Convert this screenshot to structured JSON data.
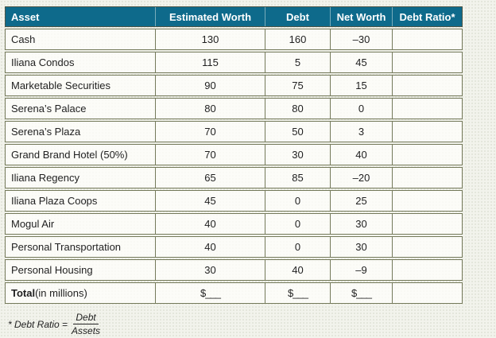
{
  "table": {
    "columns": [
      {
        "label": "Asset"
      },
      {
        "label": "Estimated Worth"
      },
      {
        "label": "Debt"
      },
      {
        "label": "Net Worth"
      },
      {
        "label": "Debt Ratio*"
      }
    ],
    "rows": [
      {
        "asset": "Cash",
        "estimated_worth": "130",
        "debt": "160",
        "net_worth": "–30",
        "debt_ratio": ""
      },
      {
        "asset": "Iliana Condos",
        "estimated_worth": "115",
        "debt": "5",
        "net_worth": "45",
        "debt_ratio": ""
      },
      {
        "asset": "Marketable Securities",
        "estimated_worth": "90",
        "debt": "75",
        "net_worth": "15",
        "debt_ratio": ""
      },
      {
        "asset": "Serena’s Palace",
        "estimated_worth": "80",
        "debt": "80",
        "net_worth": "0",
        "debt_ratio": ""
      },
      {
        "asset": "Serena’s Plaza",
        "estimated_worth": "70",
        "debt": "50",
        "net_worth": "3",
        "debt_ratio": ""
      },
      {
        "asset": "Grand Brand Hotel (50%)",
        "estimated_worth": "70",
        "debt": "30",
        "net_worth": "40",
        "debt_ratio": ""
      },
      {
        "asset": "Iliana Regency",
        "estimated_worth": "65",
        "debt": "85",
        "net_worth": "–20",
        "debt_ratio": ""
      },
      {
        "asset": "Iliana Plaza Coops",
        "estimated_worth": "45",
        "debt": "0",
        "net_worth": "25",
        "debt_ratio": ""
      },
      {
        "asset": "Mogul Air",
        "estimated_worth": "40",
        "debt": "0",
        "net_worth": "30",
        "debt_ratio": ""
      },
      {
        "asset": "Personal Transportation",
        "estimated_worth": "40",
        "debt": "0",
        "net_worth": "30",
        "debt_ratio": ""
      },
      {
        "asset": "Personal Housing",
        "estimated_worth": "30",
        "debt": "40",
        "net_worth": "–9",
        "debt_ratio": ""
      }
    ],
    "total": {
      "label_bold": "Total",
      "label_rest": " (in millions)",
      "estimated_worth": "$___",
      "debt": "$___",
      "net_worth": "$___",
      "debt_ratio": ""
    }
  },
  "footnote": {
    "prefix": "* Debt Ratio =",
    "numerator": "Debt",
    "denominator": "Assets"
  },
  "colors": {
    "header_bg": "#0e6a8b",
    "header_text": "#ffffff",
    "border": "#74795a",
    "page_bg": "#f2f3ec",
    "row_bg": "#fcfcf8",
    "text": "#1f1f1f"
  },
  "chart_data": {
    "type": "table",
    "title": "Asset worksheet (in millions)",
    "columns": [
      "Asset",
      "Estimated Worth",
      "Debt",
      "Net Worth",
      "Debt Ratio*"
    ],
    "rows": [
      [
        "Cash",
        130,
        160,
        -30,
        null
      ],
      [
        "Iliana Condos",
        115,
        5,
        45,
        null
      ],
      [
        "Marketable Securities",
        90,
        75,
        15,
        null
      ],
      [
        "Serena’s Palace",
        80,
        80,
        0,
        null
      ],
      [
        "Serena’s Plaza",
        70,
        50,
        3,
        null
      ],
      [
        "Grand Brand Hotel (50%)",
        70,
        30,
        40,
        null
      ],
      [
        "Iliana Regency",
        65,
        85,
        -20,
        null
      ],
      [
        "Iliana Plaza Coops",
        45,
        0,
        25,
        null
      ],
      [
        "Mogul Air",
        40,
        0,
        30,
        null
      ],
      [
        "Personal Transportation",
        40,
        0,
        30,
        null
      ],
      [
        "Personal Housing",
        30,
        40,
        -9,
        null
      ],
      [
        "Total (in millions)",
        "$___",
        "$___",
        "$___",
        null
      ]
    ]
  }
}
